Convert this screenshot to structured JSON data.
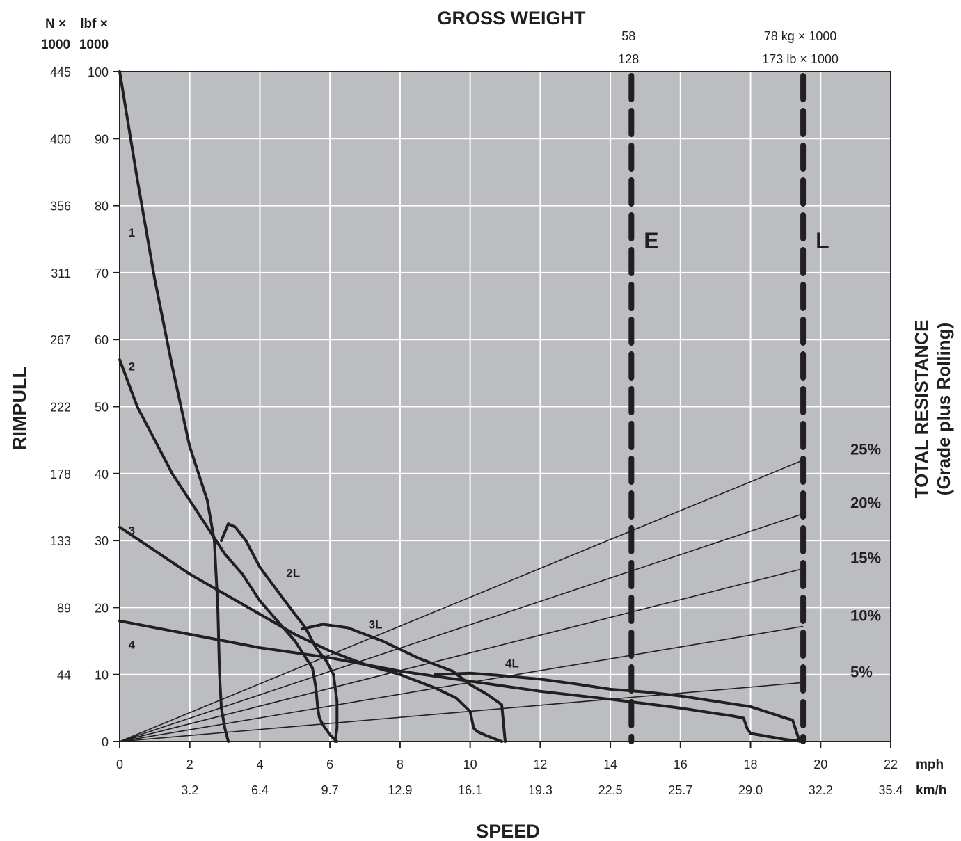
{
  "chart_data": {
    "type": "line",
    "title": "GROSS WEIGHT",
    "xlabel": "SPEED",
    "ylabel": "RIMPULL",
    "right_label_line1": "TOTAL RESISTANCE",
    "right_label_line2": "(Grade plus Rolling)",
    "y_unit_N": "N ×",
    "y_unit_N_scale": "1000",
    "y_unit_lbf": "lbf ×",
    "y_unit_lbf_scale": "1000",
    "x_unit_mph": "mph",
    "x_unit_kmh": "km/h",
    "xlim": [
      0,
      22
    ],
    "ylim": [
      0,
      100
    ],
    "grid": true,
    "x_ticks_mph": [
      "0",
      "2",
      "4",
      "6",
      "8",
      "10",
      "12",
      "14",
      "16",
      "18",
      "20",
      "22"
    ],
    "x_ticks_kmh": [
      "",
      "3.2",
      "6.4",
      "9.7",
      "12.9",
      "16.1",
      "19.3",
      "22.5",
      "25.7",
      "29.0",
      "32.2",
      "35.4"
    ],
    "y_ticks_lbf": [
      "0",
      "10",
      "20",
      "30",
      "40",
      "50",
      "60",
      "70",
      "80",
      "90",
      "100"
    ],
    "y_ticks_N": [
      "",
      "44",
      "89",
      "133",
      "178",
      "222",
      "267",
      "311",
      "356",
      "400",
      "445"
    ],
    "weight_lines": [
      {
        "name": "E",
        "x": 14.6,
        "kg_label": "58",
        "lb_label": "128"
      },
      {
        "name": "L",
        "x": 19.5,
        "kg_label": "78 kg × 1000",
        "lb_label": "173 lb × 1000"
      }
    ],
    "resistance_lines": [
      {
        "label": "25%",
        "y_at_L": 42.0
      },
      {
        "label": "20%",
        "y_at_L": 34.0
      },
      {
        "label": "15%",
        "y_at_L": 25.8
      },
      {
        "label": "10%",
        "y_at_L": 17.2
      },
      {
        "label": "5%",
        "y_at_L": 8.8
      }
    ],
    "series": [
      {
        "name": "1",
        "x": [
          0,
          0.5,
          1.0,
          1.5,
          2.0,
          2.5,
          2.7,
          2.8,
          2.85,
          2.9,
          3.0,
          3.1
        ],
        "y": [
          100,
          84,
          69,
          56,
          44,
          36,
          30,
          20,
          10,
          5,
          2,
          0
        ]
      },
      {
        "name": "2",
        "x": [
          0,
          0.5,
          1.0,
          1.5,
          2.0,
          2.5,
          3.0,
          3.5,
          4.0,
          4.5,
          5.0,
          5.5,
          5.6,
          5.65,
          5.7,
          5.8,
          6.0,
          6.2
        ],
        "y": [
          57,
          50,
          45,
          40,
          36,
          32,
          28,
          25,
          21,
          18,
          15,
          11,
          8,
          5,
          3.5,
          2.5,
          1,
          0
        ]
      },
      {
        "name": "2L",
        "x": [
          2.9,
          3.1,
          3.3,
          3.6,
          4.0,
          4.5,
          5.0,
          5.3,
          5.6,
          5.9,
          6.1,
          6.2,
          6.2,
          6.15
        ],
        "y": [
          30,
          32.5,
          32,
          30,
          26,
          22.5,
          19,
          17,
          14,
          12,
          10,
          6,
          2,
          0
        ]
      },
      {
        "name": "3",
        "x": [
          0,
          1.0,
          2.0,
          3.0,
          4.0,
          5.0,
          6.0,
          7.0,
          8.0,
          9.0,
          9.6,
          10.0,
          10.1,
          10.2,
          10.5,
          10.9
        ],
        "y": [
          32,
          28.5,
          25,
          22,
          19,
          16,
          13.5,
          11.5,
          10,
          8,
          6.5,
          4.5,
          2,
          1.5,
          0.8,
          0
        ]
      },
      {
        "name": "3L",
        "x": [
          5.2,
          5.8,
          6.5,
          7.5,
          8.5,
          9.5,
          10.0,
          10.5,
          10.9,
          11.0
        ],
        "y": [
          16.8,
          17.5,
          17,
          15,
          12.5,
          10.5,
          8.5,
          7,
          5.5,
          0
        ]
      },
      {
        "name": "4",
        "x": [
          0,
          2.0,
          4.0,
          6.0,
          8.0,
          10.0,
          12.0,
          14.0,
          16.0,
          17.5,
          17.8,
          17.9,
          18.0,
          19.0,
          19.5
        ],
        "y": [
          18,
          16,
          14,
          12.5,
          10.5,
          9,
          7.5,
          6.3,
          5,
          3.8,
          3.5,
          2,
          1.2,
          0.3,
          0
        ]
      },
      {
        "name": "4L",
        "x": [
          9.0,
          10.0,
          11.0,
          12.0,
          13.0,
          14.0,
          15.0,
          16.0,
          17.0,
          18.0,
          18.6,
          19.0,
          19.2,
          19.4
        ],
        "y": [
          10,
          10.2,
          9.8,
          9.3,
          8.6,
          7.8,
          7.4,
          6.8,
          6.0,
          5.2,
          4.2,
          3.5,
          3.2,
          0
        ]
      }
    ],
    "curve_labels": [
      {
        "text": "1",
        "x": 0.35,
        "y": 76
      },
      {
        "text": "2",
        "x": 0.35,
        "y": 56
      },
      {
        "text": "3",
        "x": 0.35,
        "y": 31.5
      },
      {
        "text": "4",
        "x": 0.35,
        "y": 14.5
      },
      {
        "text": "2L",
        "x": 4.85,
        "y": 25.2
      },
      {
        "text": "3L",
        "x": 7.2,
        "y": 17.5
      },
      {
        "text": "4L",
        "x": 11.1,
        "y": 11.7
      }
    ]
  }
}
